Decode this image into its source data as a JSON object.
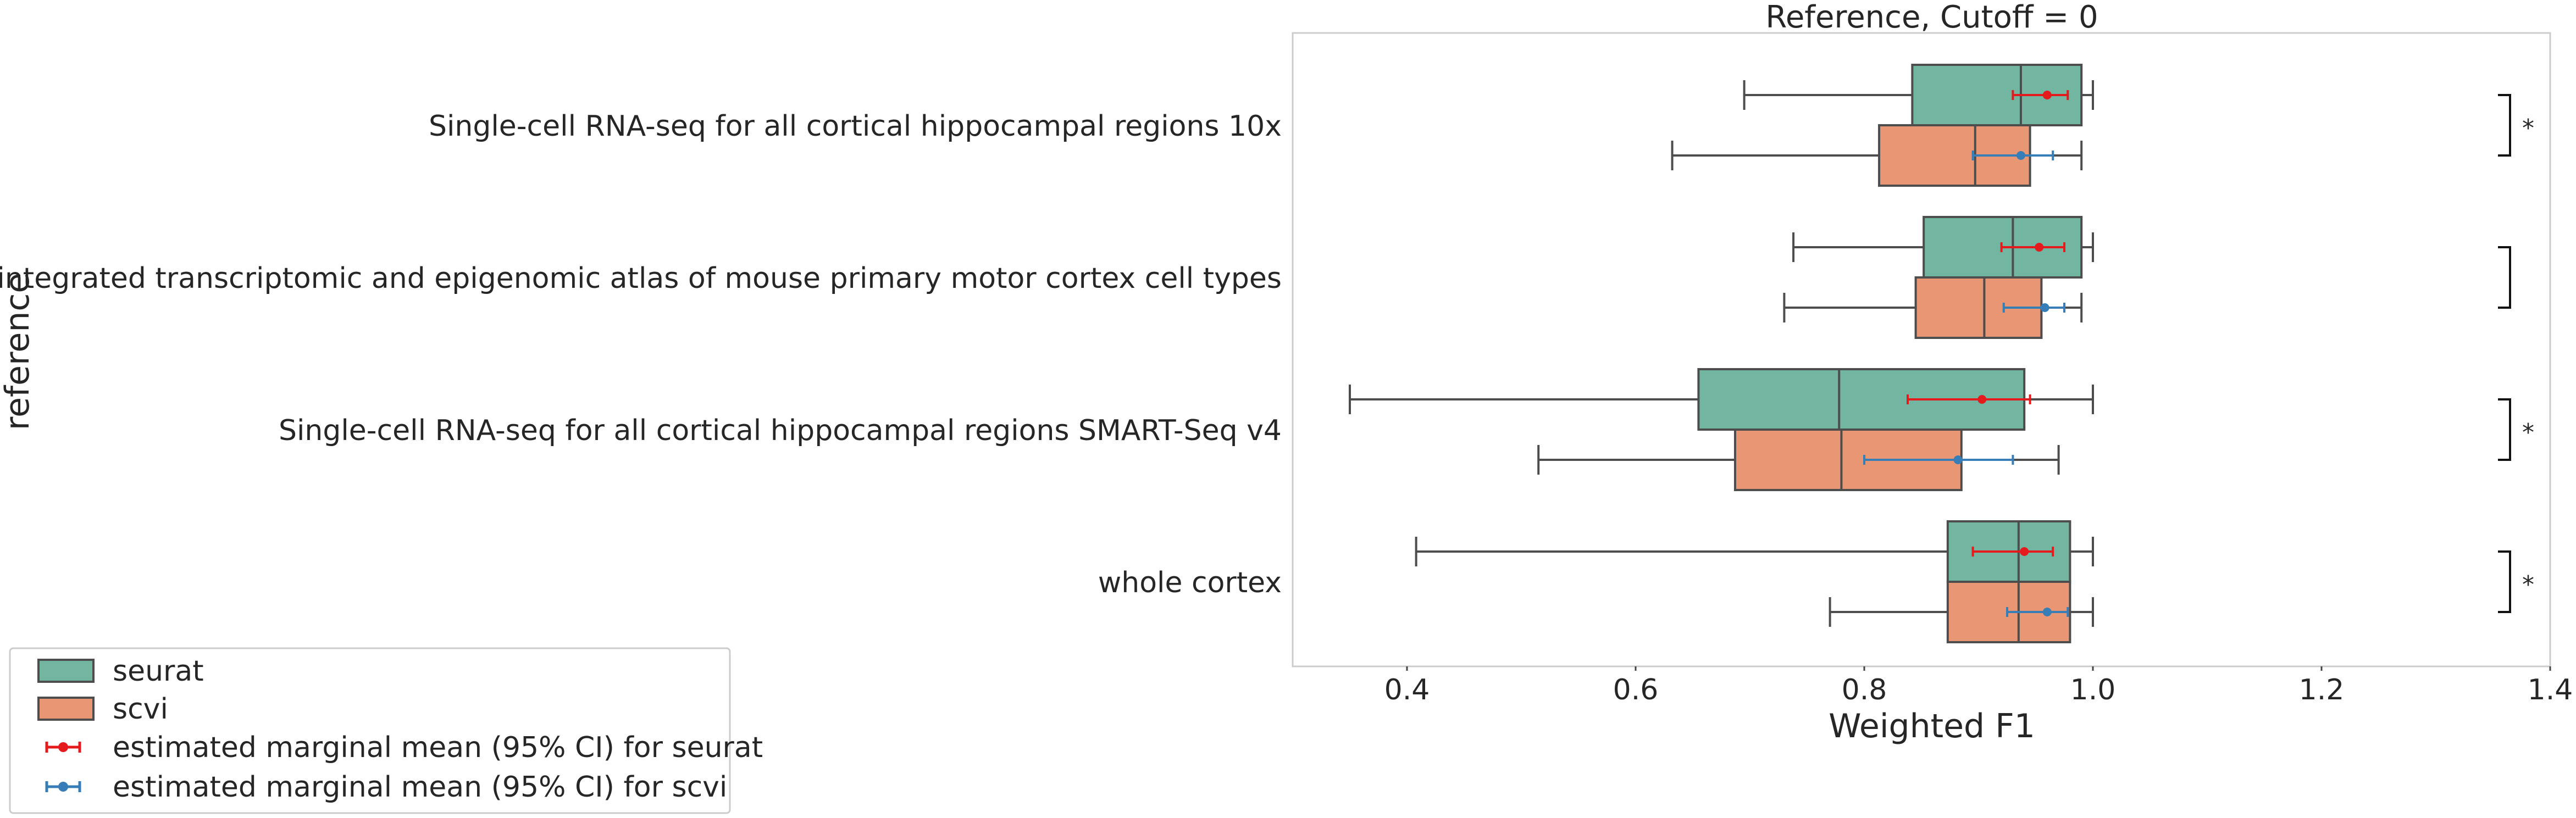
{
  "chart_data": {
    "type": "box",
    "title": "Reference, Cutoff = 0",
    "xlabel": "Weighted F1",
    "ylabel": "reference",
    "xlim": [
      0.3,
      1.4
    ],
    "xticks": [
      "0.4",
      "0.6",
      "0.8",
      "1.0",
      "1.2",
      "1.4"
    ],
    "grid": false,
    "legend_position": "lower-left outside",
    "categories": [
      "Single-cell RNA-seq for all cortical  hippocampal regions 10x",
      "An integrated transcriptomic and epigenomic atlas of mouse primary motor cortex cell types",
      "Single-cell RNA-seq for all cortical  hippocampal regions SMART-Seq v4",
      "whole cortex"
    ],
    "series": [
      {
        "name": "seurat",
        "color": "#72b6a1",
        "boxes": [
          {
            "whisker_low": 0.695,
            "q1": 0.842,
            "median": 0.937,
            "q3": 0.99,
            "whisker_high": 1.0
          },
          {
            "whisker_low": 0.738,
            "q1": 0.852,
            "median": 0.93,
            "q3": 0.99,
            "whisker_high": 1.0
          },
          {
            "whisker_low": 0.35,
            "q1": 0.655,
            "median": 0.778,
            "q3": 0.94,
            "whisker_high": 1.0
          },
          {
            "whisker_low": 0.408,
            "q1": 0.873,
            "median": 0.935,
            "q3": 0.98,
            "whisker_high": 1.0
          }
        ]
      },
      {
        "name": "scvi",
        "color": "#e99675",
        "boxes": [
          {
            "whisker_low": 0.632,
            "q1": 0.813,
            "median": 0.897,
            "q3": 0.945,
            "whisker_high": 0.99
          },
          {
            "whisker_low": 0.73,
            "q1": 0.845,
            "median": 0.905,
            "q3": 0.955,
            "whisker_high": 0.99
          },
          {
            "whisker_low": 0.515,
            "q1": 0.687,
            "median": 0.78,
            "q3": 0.885,
            "whisker_high": 0.97
          },
          {
            "whisker_low": 0.77,
            "q1": 0.873,
            "median": 0.935,
            "q3": 0.98,
            "whisker_high": 1.0
          }
        ]
      }
    ],
    "marginal_means": [
      {
        "name": "estimated marginal mean (95% CI) for seurat",
        "color": "#e41a1c",
        "points": [
          {
            "mean": 0.96,
            "low": 0.93,
            "high": 0.978
          },
          {
            "mean": 0.953,
            "low": 0.92,
            "high": 0.975
          },
          {
            "mean": 0.903,
            "low": 0.838,
            "high": 0.945
          },
          {
            "mean": 0.94,
            "low": 0.895,
            "high": 0.965
          }
        ]
      },
      {
        "name": "estimated marginal mean (95% CI) for scvi",
        "color": "#377eb8",
        "points": [
          {
            "mean": 0.937,
            "low": 0.895,
            "high": 0.965
          },
          {
            "mean": 0.958,
            "low": 0.922,
            "high": 0.975
          },
          {
            "mean": 0.882,
            "low": 0.8,
            "high": 0.93
          },
          {
            "mean": 0.96,
            "low": 0.925,
            "high": 0.978
          }
        ]
      }
    ],
    "significance": [
      "*",
      "",
      "*",
      "*"
    ]
  }
}
